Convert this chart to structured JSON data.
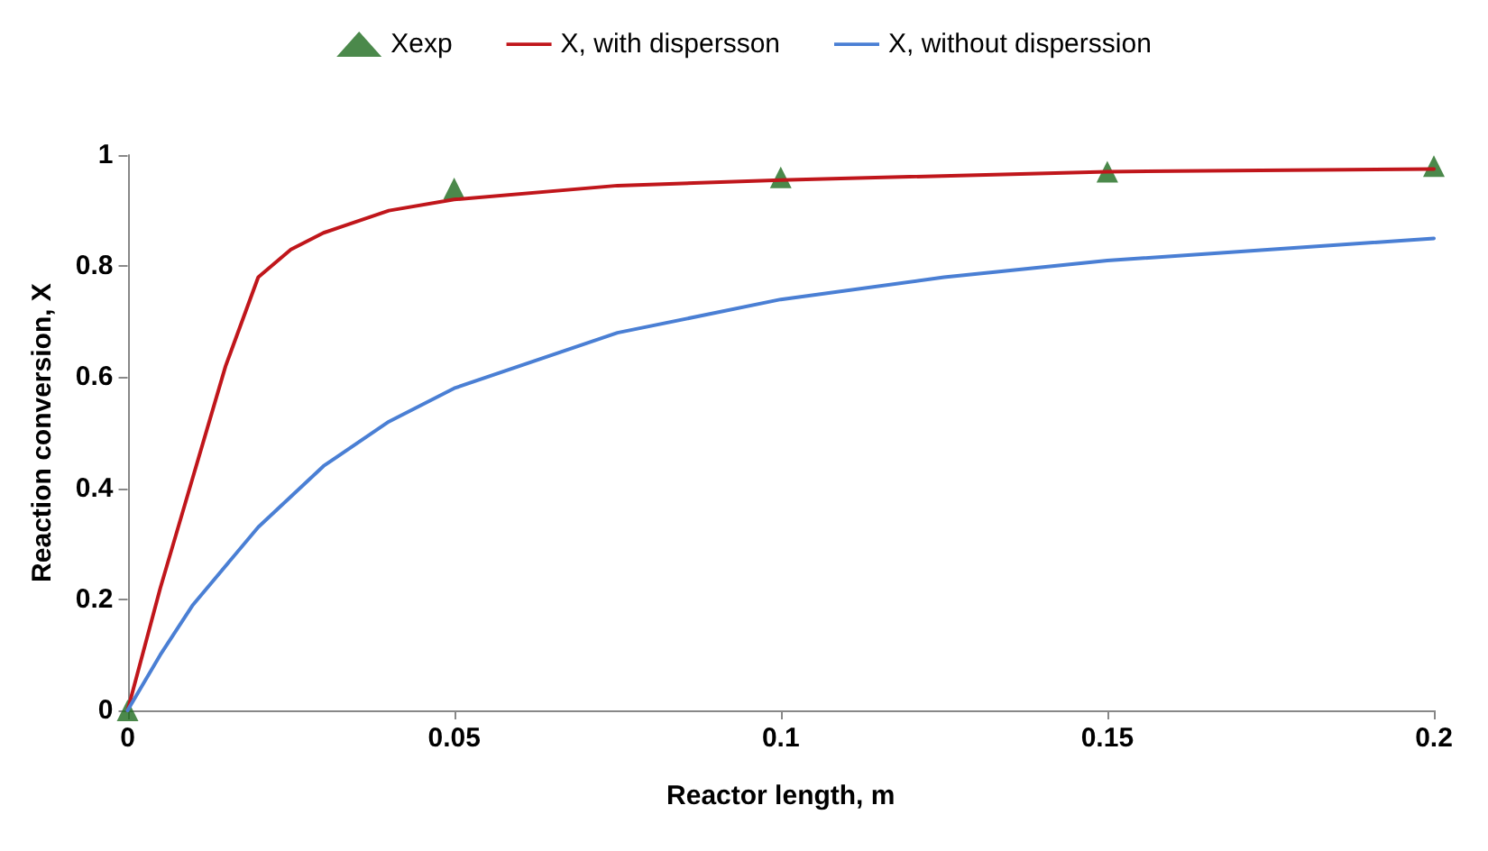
{
  "chart_data": {
    "type": "line",
    "xlabel": "Reactor length, m",
    "ylabel": "Reaction conversion, X",
    "xlim": [
      0,
      0.2
    ],
    "xticks": [
      0,
      0.05,
      0.1,
      0.15,
      0.2
    ],
    "ylim": [
      0,
      1
    ],
    "yticks": [
      0,
      0.2,
      0.4,
      0.6,
      0.8,
      1
    ],
    "grid": false,
    "legend": "top",
    "series": [
      {
        "name": "Xexp",
        "type": "scatter",
        "marker": "triangle",
        "color": "#1e6b1e",
        "x": [
          0,
          0.05,
          0.1,
          0.15,
          0.2
        ],
        "values": [
          0,
          0.94,
          0.96,
          0.97,
          0.98
        ]
      },
      {
        "name": "X, with dispersson",
        "type": "line",
        "marker": "none",
        "color": "#c0161b",
        "x": [
          0,
          0.005,
          0.01,
          0.015,
          0.02,
          0.025,
          0.03,
          0.04,
          0.05,
          0.075,
          0.1,
          0.15,
          0.2
        ],
        "values": [
          0,
          0.22,
          0.42,
          0.62,
          0.78,
          0.83,
          0.86,
          0.9,
          0.92,
          0.945,
          0.955,
          0.97,
          0.975
        ]
      },
      {
        "name": "X, without disperssion",
        "type": "line",
        "marker": "none",
        "color": "#4a7fd4",
        "x": [
          0,
          0.005,
          0.01,
          0.02,
          0.03,
          0.04,
          0.05,
          0.075,
          0.1,
          0.125,
          0.15,
          0.175,
          0.2
        ],
        "values": [
          0,
          0.1,
          0.19,
          0.33,
          0.44,
          0.52,
          0.58,
          0.68,
          0.74,
          0.78,
          0.81,
          0.83,
          0.85
        ]
      }
    ]
  }
}
